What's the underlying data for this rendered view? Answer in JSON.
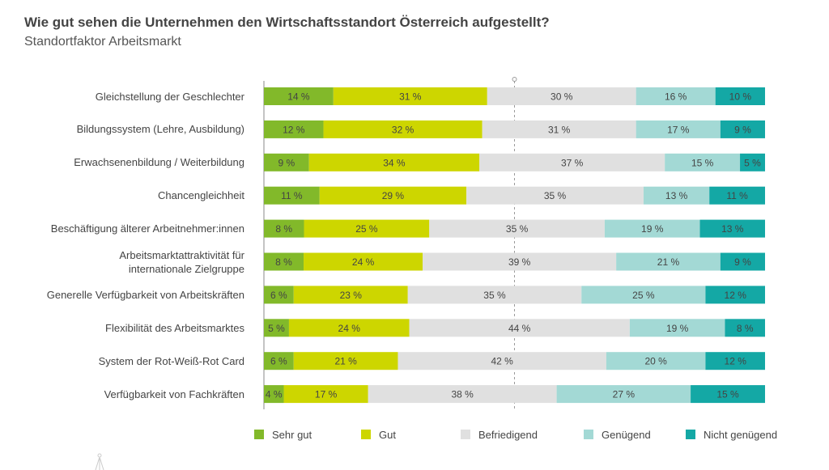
{
  "header": {
    "title": "Wie gut sehen die Unternehmen den Wirtschaftsstandort Österreich aufgestellt?",
    "subtitle": "Standortfaktor Arbeitsmarkt"
  },
  "chart_data": {
    "type": "bar",
    "orientation": "horizontal-stacked-100",
    "title": "Wie gut sehen die Unternehmen den Wirtschaftsstandort Österreich aufgestellt?",
    "subtitle": "Standortfaktor Arbeitsmarkt",
    "value_suffix": " %",
    "categories": [
      "Gleichstellung der Geschlechter",
      "Bildungssystem (Lehre, Ausbildung)",
      "Erwachsenenbildung / Weiterbildung",
      "Chancengleichheit",
      "Beschäftigung älterer Arbeitnehmer:innen",
      "Arbeitsmarktattraktivität für internationale Zielgruppe",
      "Generelle Verfügbarkeit von Arbeitskräften",
      "Flexibilität des Arbeitsmarktes",
      "System der Rot-Weiß-Rot Card",
      "Verfügbarkeit von Fachkräften"
    ],
    "category_lines": [
      [
        "Gleichstellung der Geschlechter"
      ],
      [
        "Bildungssystem (Lehre, Ausbildung)"
      ],
      [
        "Erwachsenenbildung / Weiterbildung"
      ],
      [
        "Chancengleichheit"
      ],
      [
        "Beschäftigung älterer Arbeitnehmer:innen"
      ],
      [
        "Arbeitsmarktattraktivität für",
        "internationale Zielgruppe"
      ],
      [
        "Generelle Verfügbarkeit von Arbeitskräften"
      ],
      [
        "Flexibilität des Arbeitsmarktes"
      ],
      [
        "System der Rot-Weiß-Rot Card"
      ],
      [
        "Verfügbarkeit von Fachkräften"
      ]
    ],
    "series": [
      {
        "name": "Sehr gut",
        "color": "#82b92a",
        "values": [
          14,
          12,
          9,
          11,
          8,
          8,
          6,
          5,
          6,
          4
        ]
      },
      {
        "name": "Gut",
        "color": "#cdd600",
        "values": [
          31,
          32,
          34,
          29,
          25,
          24,
          23,
          24,
          21,
          17
        ]
      },
      {
        "name": "Befriedigend",
        "color": "#e0e0e0",
        "values": [
          30,
          31,
          37,
          35,
          35,
          39,
          35,
          44,
          42,
          38
        ]
      },
      {
        "name": "Genügend",
        "color": "#a3d9d5",
        "values": [
          16,
          17,
          15,
          13,
          19,
          21,
          25,
          19,
          20,
          27
        ]
      },
      {
        "name": "Nicht genügend",
        "color": "#14a8a5",
        "values": [
          10,
          9,
          5,
          11,
          13,
          9,
          12,
          8,
          12,
          15
        ]
      }
    ],
    "legend": "bottom",
    "grid": false
  }
}
